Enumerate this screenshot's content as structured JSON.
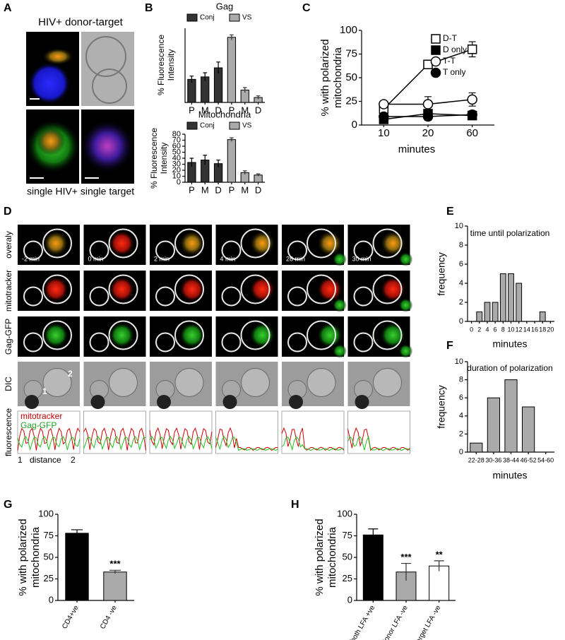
{
  "panel_labels": [
    "A",
    "B",
    "C",
    "D",
    "E",
    "F",
    "G",
    "H"
  ],
  "panel_a": {
    "title": "HIV+ donor-target",
    "captions": [
      "single HIV+",
      "single target"
    ]
  },
  "panel_d": {
    "row_labels": [
      "overaly",
      "mitotracker",
      "Gag-GFP",
      "DIC",
      "fluorescence"
    ],
    "times": [
      "-2 min",
      "0 min",
      "2 min",
      "4 min",
      "28 min",
      "30 min"
    ],
    "cell_labels": [
      "1",
      "2"
    ],
    "legend": [
      "mitotracker",
      "Gag-GFP"
    ],
    "axis_label": [
      "1",
      "distance",
      "2"
    ]
  },
  "chart_data": [
    {
      "type": "bar",
      "title": "Gag",
      "ylabel": "% Fluorescence Intensity",
      "categories": [
        "P",
        "M",
        "D",
        "P",
        "M",
        "D"
      ],
      "series": [
        {
          "name": "Conj",
          "color": "#333333",
          "values": [
            28,
            31,
            42,
            null,
            null,
            null
          ],
          "errors": [
            4,
            5,
            7,
            null,
            null,
            null
          ]
        },
        {
          "name": "VS",
          "color": "#aaaaaa",
          "values": [
            null,
            null,
            null,
            79,
            15,
            6
          ],
          "errors": [
            null,
            null,
            null,
            3,
            3,
            2
          ]
        }
      ],
      "ylim": [
        0,
        90
      ]
    },
    {
      "type": "bar",
      "title": "Mitochondria",
      "ylabel": "% Fluorescence Intensity",
      "categories": [
        "P",
        "M",
        "D",
        "P",
        "M",
        "D"
      ],
      "series": [
        {
          "name": "Conj",
          "color": "#333333",
          "values": [
            33,
            37,
            31,
            null,
            null,
            null
          ],
          "errors": [
            7,
            8,
            6,
            null,
            null,
            null
          ]
        },
        {
          "name": "VS",
          "color": "#aaaaaa",
          "values": [
            null,
            null,
            null,
            71,
            16,
            12
          ],
          "errors": [
            null,
            null,
            null,
            3,
            3,
            2
          ]
        }
      ],
      "ylim": [
        0,
        80
      ],
      "yticks": [
        0,
        10,
        20,
        30,
        40,
        50,
        60,
        70,
        80
      ]
    },
    {
      "type": "line",
      "ylabel": "% with polarized mitochondria",
      "xlabel": "minutes",
      "categories": [
        "10",
        "20",
        "60"
      ],
      "series": [
        {
          "name": "D-T",
          "color": "#000000",
          "marker": "open-square",
          "values": [
            17,
            64,
            80
          ],
          "errors": [
            4,
            4,
            8
          ]
        },
        {
          "name": "D only",
          "color": "#000000",
          "marker": "filled-square",
          "values": [
            6,
            12,
            10
          ],
          "errors": [
            2,
            3,
            3
          ]
        },
        {
          "name": "T-T",
          "color": "#000000",
          "marker": "open-circle",
          "values": [
            22,
            22,
            27
          ],
          "errors": [
            2,
            8,
            7
          ]
        },
        {
          "name": "T only",
          "color": "#000000",
          "marker": "filled-circle",
          "values": [
            9,
            9,
            11
          ],
          "errors": [
            2,
            4,
            4
          ]
        }
      ],
      "ylim": [
        0,
        100
      ],
      "yticks": [
        0,
        25,
        50,
        75,
        100
      ]
    },
    {
      "type": "bar",
      "title": "time until polarization",
      "ylabel": "frequency",
      "xlabel": "minutes",
      "categories": [
        "0",
        "2",
        "4",
        "6",
        "8",
        "10",
        "12",
        "14",
        "16",
        "18",
        "20"
      ],
      "values": [
        0,
        1,
        2,
        2,
        5,
        5,
        4,
        0,
        0,
        1,
        0
      ],
      "color": "#aaaaaa",
      "ylim": [
        0,
        10
      ],
      "yticks": [
        0,
        2,
        4,
        6,
        8,
        10
      ]
    },
    {
      "type": "bar",
      "title": "duration of polarization",
      "ylabel": "frequency",
      "xlabel": "minutes",
      "categories": [
        "22-28",
        "30-36",
        "38-44",
        "46-52",
        "54-60"
      ],
      "values": [
        1,
        6,
        8,
        5,
        0
      ],
      "color": "#aaaaaa",
      "ylim": [
        0,
        10
      ],
      "yticks": [
        0,
        2,
        4,
        6,
        8,
        10
      ]
    },
    {
      "type": "bar",
      "ylabel": "% with polarized mitochondria",
      "categories": [
        "CD4+ve",
        "CD4 -ve"
      ],
      "values": [
        78,
        33
      ],
      "errors": [
        4,
        2
      ],
      "colors": [
        "#000000",
        "#aaaaaa"
      ],
      "significance": [
        null,
        "***"
      ],
      "ylim": [
        0,
        100
      ],
      "yticks": [
        0,
        25,
        50,
        75,
        100
      ]
    },
    {
      "type": "bar",
      "ylabel": "% with polarized mitochondria",
      "categories": [
        "both LFA +ve",
        "donor LFA -ve",
        "target LFA -ve"
      ],
      "values": [
        76,
        33,
        40
      ],
      "errors": [
        7,
        10,
        6
      ],
      "colors": [
        "#000000",
        "#aaaaaa",
        "#ffffff"
      ],
      "significance": [
        null,
        "***",
        "**"
      ],
      "ylim": [
        0,
        100
      ],
      "yticks": [
        0,
        25,
        50,
        75,
        100
      ]
    }
  ]
}
